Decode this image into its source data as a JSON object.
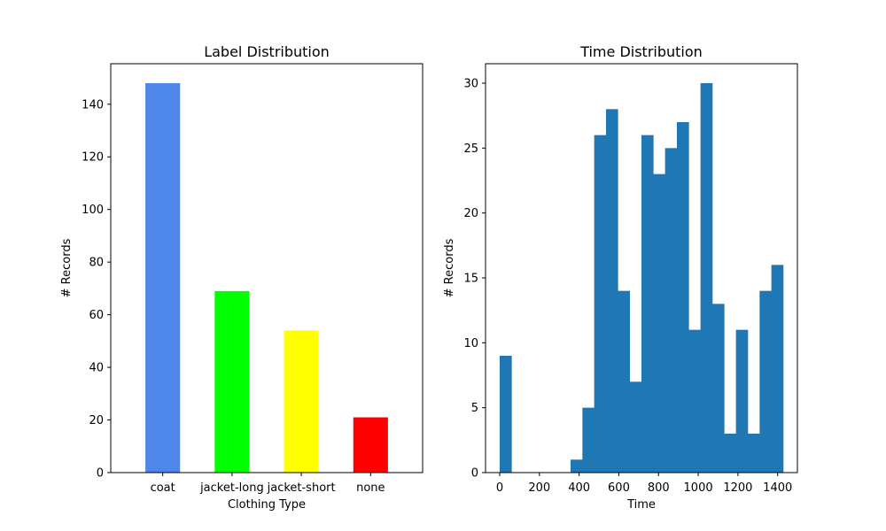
{
  "chart_data": [
    {
      "type": "bar",
      "title": "Label Distribution",
      "xlabel": "Clothing Type",
      "ylabel": "# Records",
      "categories": [
        "coat",
        "jacket-long",
        "jacket-short",
        "none"
      ],
      "values": [
        148,
        69,
        54,
        21
      ],
      "colors": [
        "#4f86ea",
        "#00ff00",
        "#ffff00",
        "#ff0000"
      ],
      "ylim": [
        0,
        155.4
      ],
      "yticks": [
        0,
        20,
        40,
        60,
        80,
        100,
        120,
        140
      ],
      "grid": false
    },
    {
      "type": "bar",
      "title": "Time Distribution",
      "xlabel": "Time",
      "ylabel": "# Records",
      "bin_edges": [
        0,
        59.5,
        119,
        178.5,
        238,
        297.5,
        357,
        416.5,
        476,
        535.5,
        595,
        654.5,
        714,
        773.5,
        833,
        892.5,
        952,
        1011.5,
        1071,
        1130.5,
        1190,
        1249.5,
        1309,
        1368.5,
        1428
      ],
      "counts": [
        9,
        0,
        0,
        0,
        0,
        0,
        1,
        5,
        26,
        28,
        14,
        7,
        26,
        23,
        25,
        27,
        11,
        30,
        13,
        3,
        11,
        3,
        14,
        16
      ],
      "color": "#1f77b4",
      "xlim": [
        -71.4,
        1499.4
      ],
      "xticks": [
        0,
        200,
        400,
        600,
        800,
        1000,
        1200,
        1400
      ],
      "ylim": [
        0,
        31.5
      ],
      "yticks": [
        0,
        5,
        10,
        15,
        20,
        25,
        30
      ],
      "grid": false
    }
  ]
}
